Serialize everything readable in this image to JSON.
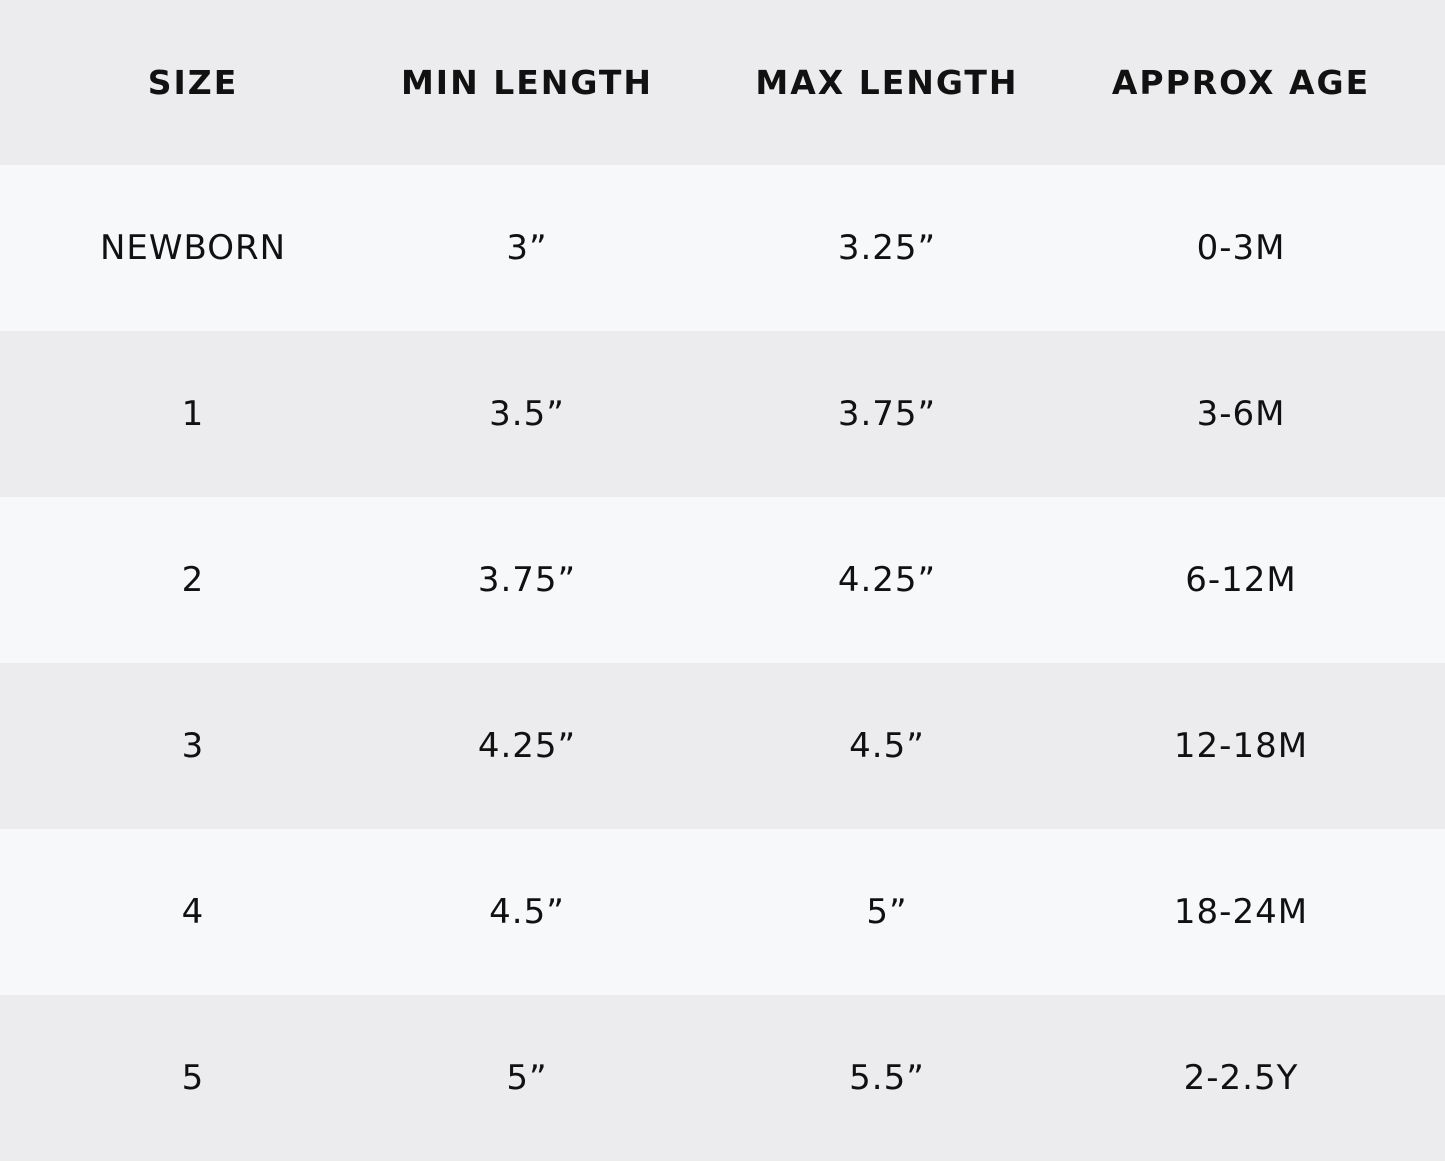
{
  "table": {
    "header": [
      "SIZE",
      "MIN LENGTH",
      "MAX LENGTH",
      "APPROX AGE"
    ],
    "rows": [
      [
        "NEWBORN",
        "3”",
        "3.25”",
        "0-3M"
      ],
      [
        "1",
        "3.5”",
        "3.75”",
        "3-6M"
      ],
      [
        "2",
        "3.75”",
        "4.25”",
        "6-12M"
      ],
      [
        "3",
        "4.25”",
        "4.5”",
        "12-18M"
      ],
      [
        "4",
        "4.5”",
        "5”",
        "18-24M"
      ],
      [
        "5",
        "5”",
        "5.5”",
        "2-2.5Y"
      ]
    ]
  }
}
